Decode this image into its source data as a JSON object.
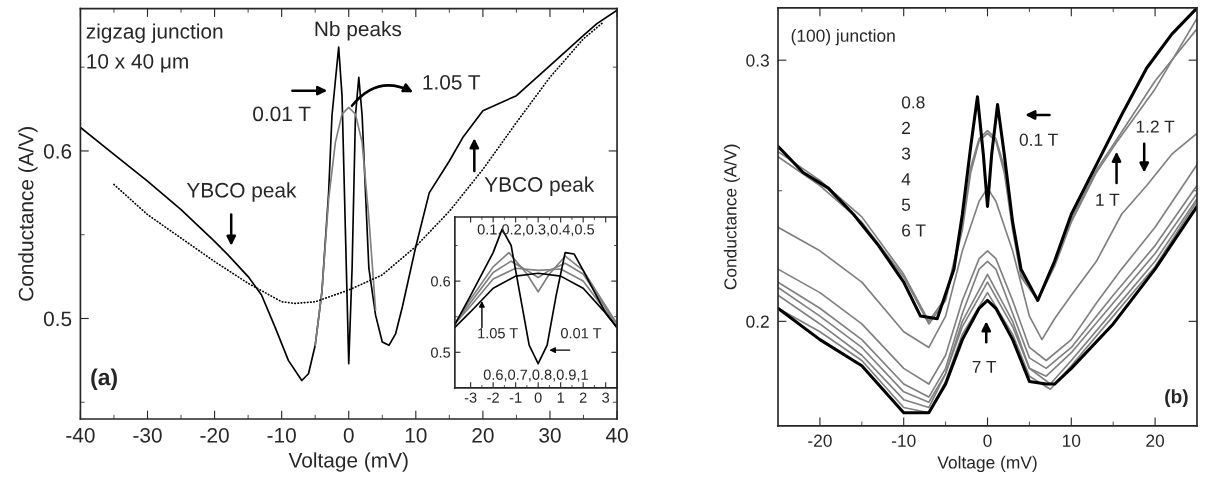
{
  "chart_data": [
    {
      "type": "line",
      "xlabel": "Voltage (mV)",
      "ylabel": "Conductance (A/V)",
      "xlim": [
        -40,
        40
      ],
      "ylim": [
        0.44,
        0.685
      ],
      "xticks": [
        -40,
        {
          "value": -35,
          "label": null
        },
        -30,
        {
          "value": -25,
          "label": null
        },
        -20,
        {
          "value": -15,
          "label": null
        },
        -10,
        {
          "value": -5,
          "label": null
        },
        0,
        {
          "value": 5,
          "label": null
        },
        10,
        {
          "value": 15,
          "label": null
        },
        20,
        {
          "value": 25,
          "label": null
        },
        30,
        {
          "value": 35,
          "label": null
        },
        40
      ],
      "yticks": [
        {
          "value": 0.45,
          "label": null
        },
        0.5,
        {
          "value": 0.55,
          "label": null
        },
        0.6,
        {
          "value": 0.65,
          "label": null
        }
      ],
      "series": [
        {
          "color": "#000000",
          "x": [
            -40,
            -35,
            -30,
            -25,
            -20,
            -18,
            -15,
            -13,
            -11,
            -9,
            -7,
            -6,
            -5,
            -4,
            -3,
            -2.5,
            -1.5,
            -1,
            -0.5,
            0,
            0.5,
            1,
            1.5,
            2,
            2.5,
            3,
            4,
            5,
            6,
            7,
            8,
            10,
            12,
            15,
            17,
            20,
            25,
            30,
            35,
            37,
            40
          ],
          "values": [
            0.614,
            0.598,
            0.582,
            0.565,
            0.546,
            0.538,
            0.525,
            0.514,
            0.495,
            0.475,
            0.463,
            0.467,
            0.484,
            0.516,
            0.575,
            0.621,
            0.662,
            0.633,
            0.553,
            0.473,
            0.53,
            0.621,
            0.644,
            0.621,
            0.575,
            0.53,
            0.502,
            0.486,
            0.484,
            0.491,
            0.507,
            0.543,
            0.575,
            0.594,
            0.608,
            0.624,
            0.633,
            0.651,
            0.669,
            0.676,
            0.684
          ]
        },
        {
          "color": "#808080",
          "x": [
            -5,
            -4,
            -3,
            -2,
            -1,
            0,
            1,
            2,
            3,
            4
          ],
          "values": [
            0.484,
            0.516,
            0.571,
            0.605,
            0.622,
            0.626,
            0.622,
            0.605,
            0.56,
            0.505
          ]
        },
        {
          "color": "#000000",
          "line_style": "dotted",
          "x": [
            -35,
            -30,
            -20,
            -15,
            -10,
            -8,
            -5,
            0,
            5,
            10,
            15,
            20,
            25,
            30,
            35,
            38
          ],
          "values": [
            0.58,
            0.562,
            0.534,
            0.521,
            0.51,
            0.509,
            0.51,
            0.517,
            0.526,
            0.543,
            0.564,
            0.589,
            0.617,
            0.644,
            0.667,
            0.677
          ]
        }
      ],
      "annotations": [
        "zigzag junction",
        "10 x 40 μm",
        "Nb peaks",
        "0.01 T",
        "1.05 T",
        "YBCO peak",
        "YBCO peak",
        "(a)"
      ]
    },
    {
      "type": "line",
      "xlim": [
        -3.7,
        3.5
      ],
      "ylim": [
        0.45,
        0.69
      ],
      "xticks": [
        -3,
        {
          "value": -2.5,
          "label": null
        },
        -2,
        {
          "value": -1.5,
          "label": null
        },
        -1,
        {
          "value": -0.5,
          "label": null
        },
        0,
        {
          "value": 0.5,
          "label": null
        },
        1,
        {
          "value": 1.5,
          "label": null
        },
        2,
        {
          "value": 2.5,
          "label": null
        },
        3
      ],
      "yticks": [
        0.5,
        {
          "value": 0.55,
          "label": null
        },
        0.6,
        {
          "value": 0.65,
          "label": null
        }
      ],
      "series": [
        {
          "color": "#808080",
          "x": [
            -3.7,
            -3,
            -2,
            -1.3,
            -0.5,
            0,
            0.5,
            1.2,
            2,
            3,
            3.5
          ],
          "values": [
            0.54,
            0.575,
            0.62,
            0.64,
            0.61,
            0.585,
            0.61,
            0.635,
            0.615,
            0.565,
            0.54
          ]
        },
        {
          "color": "#808080",
          "x": [
            -3.7,
            -3,
            -2,
            -1.2,
            -0.5,
            0,
            0.5,
            1.2,
            2,
            3,
            3.5
          ],
          "values": [
            0.54,
            0.57,
            0.612,
            0.628,
            0.615,
            0.605,
            0.615,
            0.625,
            0.61,
            0.562,
            0.54
          ]
        },
        {
          "color": "#808080",
          "x": [
            -3.7,
            -3,
            -2,
            -1,
            0,
            1,
            2,
            3,
            3.5
          ],
          "values": [
            0.54,
            0.565,
            0.603,
            0.618,
            0.615,
            0.617,
            0.6,
            0.558,
            0.54
          ]
        },
        {
          "color": "#000000",
          "x": [
            -3.7,
            -3,
            -2,
            -1.6,
            -1.2,
            -0.8,
            -0.4,
            0,
            0.4,
            0.8,
            1.2,
            1.6,
            2,
            2.5,
            3,
            3.5
          ],
          "values": [
            0.539,
            0.58,
            0.64,
            0.673,
            0.65,
            0.58,
            0.51,
            0.484,
            0.51,
            0.58,
            0.64,
            0.638,
            0.615,
            0.585,
            0.555,
            0.535
          ]
        },
        {
          "color": "#000000",
          "x": [
            -3.7,
            -3,
            -2,
            -1,
            0,
            1,
            2,
            3,
            3.5
          ],
          "values": [
            0.535,
            0.557,
            0.59,
            0.607,
            0.611,
            0.607,
            0.59,
            0.555,
            0.535
          ]
        }
      ],
      "annotations": [
        "0.1,0.2,0.3,0.4,0.5",
        "0.6,0.7,0.8,0.9,1",
        {
          "text": "1.05 T",
          "x": -2.5,
          "y": 0.572
        },
        "0.01 T"
      ]
    },
    {
      "type": "line",
      "xlabel": "Voltage (mV)",
      "ylabel": "Conductance (A/V)",
      "xlim": [
        -25,
        25
      ],
      "ylim": [
        0.16,
        0.32
      ],
      "xticks": [
        -20,
        {
          "value": -15,
          "label": null
        },
        -10,
        {
          "value": -5,
          "label": null
        },
        0,
        {
          "value": 5,
          "label": null
        },
        10,
        {
          "value": 15,
          "label": null
        },
        20
      ],
      "yticks": [
        0.2,
        {
          "value": 0.25,
          "label": null
        },
        0.3
      ],
      "series": [
        {
          "color": "#808080",
          "x": [
            -25,
            -20,
            -15,
            -10,
            -7,
            -5,
            -3,
            -2,
            -1,
            0,
            1,
            2,
            3,
            4,
            6,
            8,
            10,
            13,
            15.5,
            20,
            25
          ],
          "values": [
            0.265,
            0.254,
            0.24,
            0.218,
            0.2,
            0.209,
            0.237,
            0.259,
            0.27,
            0.273,
            0.27,
            0.259,
            0.237,
            0.218,
            0.208,
            0.222,
            0.239,
            0.258,
            0.27,
            0.292,
            0.312
          ]
        },
        {
          "color": "#808080",
          "x": [
            -25,
            -20,
            -15,
            -10,
            -7,
            -5,
            -3,
            -2,
            -1,
            0,
            1,
            2,
            3,
            4,
            6,
            8,
            10,
            13,
            15.5,
            20,
            25
          ],
          "values": [
            0.263,
            0.252,
            0.238,
            0.217,
            0.199,
            0.208,
            0.235,
            0.257,
            0.269,
            0.272,
            0.269,
            0.257,
            0.235,
            0.217,
            0.208,
            0.221,
            0.238,
            0.257,
            0.269,
            0.289,
            0.316
          ]
        },
        {
          "color": "#808080",
          "x": [
            -25,
            -20,
            -15,
            -10,
            -7,
            -5,
            -3,
            -1,
            0,
            1,
            3,
            5,
            6.5,
            8,
            10,
            13,
            16,
            19,
            22,
            25
          ],
          "values": [
            0.236,
            0.227,
            0.215,
            0.196,
            0.19,
            0.202,
            0.227,
            0.246,
            0.251,
            0.246,
            0.227,
            0.202,
            0.193,
            0.201,
            0.21,
            0.223,
            0.241,
            0.252,
            0.264,
            0.272
          ]
        },
        {
          "color": "#808080",
          "x": [
            -25,
            -20,
            -15,
            -10,
            -7,
            -5,
            -3,
            -1,
            0,
            1,
            3,
            5,
            7,
            10,
            13,
            16,
            20,
            25
          ],
          "values": [
            0.22,
            0.211,
            0.199,
            0.182,
            0.176,
            0.187,
            0.208,
            0.224,
            0.227,
            0.224,
            0.208,
            0.19,
            0.185,
            0.193,
            0.207,
            0.22,
            0.236,
            0.26
          ]
        },
        {
          "color": "#808080",
          "x": [
            -25,
            -20,
            -15,
            -10,
            -7,
            -5,
            -3,
            -1,
            0,
            1,
            3,
            5,
            7,
            10,
            15,
            20,
            25
          ],
          "values": [
            0.215,
            0.205,
            0.193,
            0.176,
            0.171,
            0.182,
            0.203,
            0.22,
            0.223,
            0.22,
            0.203,
            0.186,
            0.182,
            0.19,
            0.21,
            0.229,
            0.252
          ]
        },
        {
          "color": "#808080",
          "x": [
            -25,
            -20,
            -15,
            -10,
            -7,
            -5,
            -3,
            0,
            3,
            5,
            7,
            10,
            15,
            20,
            25
          ],
          "values": [
            0.213,
            0.202,
            0.19,
            0.173,
            0.169,
            0.18,
            0.2,
            0.218,
            0.2,
            0.182,
            0.179,
            0.188,
            0.207,
            0.226,
            0.249
          ]
        },
        {
          "color": "#808080",
          "x": [
            -25,
            -20,
            -15,
            -10,
            -7,
            -5,
            -3,
            0,
            3,
            5,
            7.5,
            10,
            15,
            20,
            25
          ],
          "values": [
            0.21,
            0.199,
            0.187,
            0.17,
            0.167,
            0.18,
            0.198,
            0.215,
            0.198,
            0.182,
            0.176,
            0.185,
            0.204,
            0.223,
            0.247
          ]
        },
        {
          "color": "#808080",
          "x": [
            -25,
            -20,
            -15,
            -10,
            -7,
            -5,
            -3,
            0,
            3,
            5,
            7.5,
            10,
            15,
            20,
            25
          ],
          "values": [
            0.205,
            0.196,
            0.185,
            0.167,
            0.165,
            0.177,
            0.195,
            0.211,
            0.195,
            0.179,
            0.174,
            0.183,
            0.202,
            0.221,
            0.246
          ]
        },
        {
          "color": "#000000",
          "x": [
            -25,
            -22,
            -19,
            -16,
            -13,
            -10,
            -8,
            -6,
            -4,
            -3,
            -2,
            -1.2,
            -0.5,
            0,
            0.5,
            1.2,
            2,
            3,
            4,
            6,
            8,
            10,
            13,
            16,
            19,
            22,
            25
          ],
          "values": [
            0.267,
            0.257,
            0.251,
            0.241,
            0.229,
            0.215,
            0.202,
            0.201,
            0.22,
            0.241,
            0.267,
            0.286,
            0.264,
            0.244,
            0.264,
            0.283,
            0.264,
            0.238,
            0.22,
            0.208,
            0.223,
            0.241,
            0.26,
            0.279,
            0.297,
            0.31,
            0.32
          ]
        },
        {
          "color": "#000000",
          "x": [
            -25,
            -20,
            -15,
            -10,
            -7,
            -5,
            -3,
            -1,
            0,
            1,
            3,
            5,
            7,
            8,
            10,
            15,
            20,
            25
          ],
          "values": [
            0.205,
            0.193,
            0.183,
            0.165,
            0.165,
            0.176,
            0.193,
            0.205,
            0.208,
            0.205,
            0.193,
            0.177,
            0.176,
            0.176,
            0.182,
            0.199,
            0.22,
            0.244
          ]
        }
      ],
      "annotations": [
        "(100) junction",
        "0.8\n2\n3\n4\n5\n6 T",
        "0.1 T",
        "1 T",
        "1.2 T",
        "7 T",
        "(b)"
      ]
    }
  ]
}
